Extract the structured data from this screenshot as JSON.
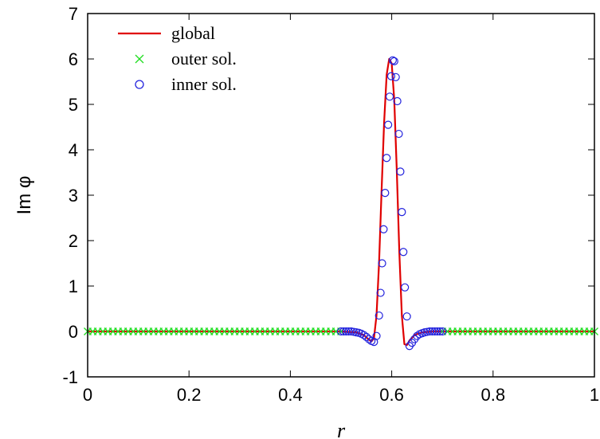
{
  "chart_data": {
    "type": "line",
    "xlabel": "r",
    "ylabel": "Im φ",
    "xlim": [
      0,
      1
    ],
    "ylim": [
      -1,
      7
    ],
    "xticks": [
      0,
      0.2,
      0.4,
      0.6,
      0.8,
      1
    ],
    "xtick_labels": [
      "0",
      "0.2",
      "0.4",
      "0.6",
      "0.8",
      "1"
    ],
    "yticks": [
      -1,
      0,
      1,
      2,
      3,
      4,
      5,
      6,
      7
    ],
    "ytick_labels": [
      "-1",
      "0",
      "1",
      "2",
      "3",
      "4",
      "5",
      "6",
      "7"
    ],
    "legend_position": "top-left",
    "series": [
      {
        "name": "global",
        "style": "line",
        "color": "#e00000",
        "x": [
          0,
          0.5,
          0.53,
          0.545,
          0.555,
          0.56,
          0.565,
          0.57,
          0.575,
          0.58,
          0.585,
          0.59,
          0.595,
          0.6,
          0.605,
          0.61,
          0.615,
          0.62,
          0.625,
          0.63,
          0.635,
          0.645,
          0.66,
          0.68,
          0.7,
          1
        ],
        "y": [
          0,
          0,
          -0.02,
          -0.08,
          -0.18,
          -0.22,
          -0.15,
          0.35,
          1.5,
          3.1,
          4.6,
          5.65,
          6.0,
          5.9,
          5.1,
          3.55,
          1.75,
          0.35,
          -0.28,
          -0.3,
          -0.2,
          -0.08,
          -0.02,
          0,
          0,
          0
        ]
      },
      {
        "name": "outer sol.",
        "style": "x-markers",
        "color": "#22dd22",
        "x": [
          0,
          0.01,
          0.02,
          0.03,
          0.04,
          0.05,
          0.06,
          0.07,
          0.08,
          0.09,
          0.1,
          0.11,
          0.12,
          0.13,
          0.14,
          0.15,
          0.16,
          0.17,
          0.18,
          0.19,
          0.2,
          0.21,
          0.22,
          0.23,
          0.24,
          0.25,
          0.26,
          0.27,
          0.28,
          0.29,
          0.3,
          0.31,
          0.32,
          0.33,
          0.34,
          0.35,
          0.36,
          0.37,
          0.38,
          0.39,
          0.4,
          0.41,
          0.42,
          0.43,
          0.44,
          0.45,
          0.46,
          0.47,
          0.48,
          0.49,
          0.5,
          0.7,
          0.71,
          0.72,
          0.73,
          0.74,
          0.75,
          0.76,
          0.77,
          0.78,
          0.79,
          0.8,
          0.81,
          0.82,
          0.83,
          0.84,
          0.85,
          0.86,
          0.87,
          0.88,
          0.89,
          0.9,
          0.91,
          0.92,
          0.93,
          0.94,
          0.95,
          0.96,
          0.97,
          0.98,
          0.99,
          1.0
        ],
        "y": [
          0,
          0,
          0,
          0,
          0,
          0,
          0,
          0,
          0,
          0,
          0,
          0,
          0,
          0,
          0,
          0,
          0,
          0,
          0,
          0,
          0,
          0,
          0,
          0,
          0,
          0,
          0,
          0,
          0,
          0,
          0,
          0,
          0,
          0,
          0,
          0,
          0,
          0,
          0,
          0,
          0,
          0,
          0,
          0,
          0,
          0,
          0,
          0,
          0,
          0,
          0,
          0,
          0,
          0,
          0,
          0,
          0,
          0,
          0,
          0,
          0,
          0,
          0,
          0,
          0,
          0,
          0,
          0,
          0,
          0,
          0,
          0,
          0,
          0,
          0,
          0,
          0,
          0,
          0,
          0,
          0,
          0
        ]
      },
      {
        "name": "inner sol.",
        "style": "circle-markers",
        "color": "#2222dd",
        "x": [
          0.5,
          0.505,
          0.51,
          0.515,
          0.52,
          0.525,
          0.53,
          0.535,
          0.54,
          0.545,
          0.55,
          0.555,
          0.56,
          0.565,
          0.57,
          0.575,
          0.578,
          0.581,
          0.584,
          0.587,
          0.59,
          0.593,
          0.596,
          0.599,
          0.602,
          0.605,
          0.608,
          0.611,
          0.614,
          0.617,
          0.62,
          0.623,
          0.626,
          0.63,
          0.635,
          0.64,
          0.645,
          0.65,
          0.655,
          0.66,
          0.665,
          0.67,
          0.675,
          0.68,
          0.685,
          0.69,
          0.695,
          0.7
        ],
        "y": [
          0,
          0,
          0,
          0,
          0,
          -0.01,
          -0.02,
          -0.03,
          -0.05,
          -0.08,
          -0.12,
          -0.17,
          -0.21,
          -0.23,
          -0.1,
          0.35,
          0.85,
          1.5,
          2.25,
          3.05,
          3.82,
          4.55,
          5.17,
          5.62,
          5.97,
          5.95,
          5.6,
          5.07,
          4.35,
          3.52,
          2.63,
          1.75,
          0.97,
          0.33,
          -0.32,
          -0.25,
          -0.17,
          -0.1,
          -0.06,
          -0.04,
          -0.02,
          -0.01,
          0,
          0,
          0,
          0,
          0,
          0
        ]
      }
    ]
  }
}
